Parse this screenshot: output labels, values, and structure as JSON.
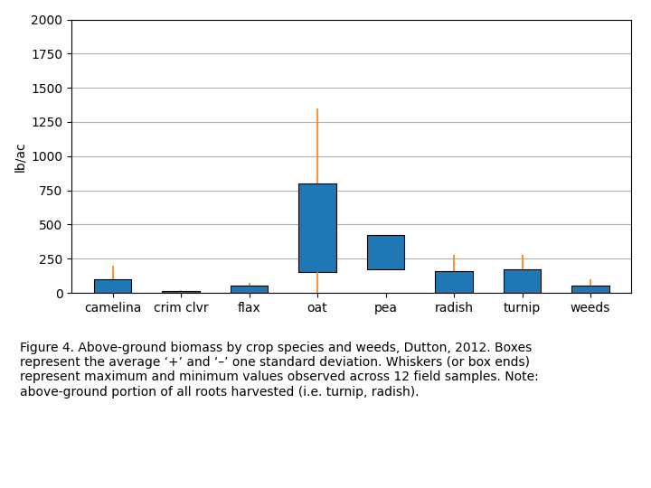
{
  "chart_data": {
    "type": "bar",
    "categories": [
      "camelina",
      "crim clvr",
      "flax",
      "oat",
      "pea",
      "radish",
      "turnip",
      "weeds"
    ],
    "bar_bottoms": [
      0,
      0,
      0,
      150,
      175,
      0,
      0,
      0
    ],
    "bar_tops": [
      100,
      10,
      50,
      800,
      425,
      160,
      175,
      50
    ],
    "whisker_highs": [
      200,
      20,
      75,
      1350,
      425,
      275,
      275,
      100
    ],
    "whisker_lows": [
      0,
      0,
      0,
      0,
      175,
      0,
      0,
      0
    ],
    "ylabel": "lb/ac",
    "ylim": [
      0,
      2000
    ],
    "yticks": [
      0,
      250,
      500,
      750,
      1000,
      1250,
      1500,
      1750,
      2000
    ],
    "grid": true,
    "caption": "Figure 4. Above-ground biomass by crop species and weeds, Dutton, 2012. Boxes\nrepresent the average ‘+’ and ‘–’ one standard deviation. Whiskers (or box ends)\nrepresent maximum and minimum values observed across 12 field samples. Note:\nabove-ground portion of all roots harvested (i.e. turnip, radish)."
  }
}
